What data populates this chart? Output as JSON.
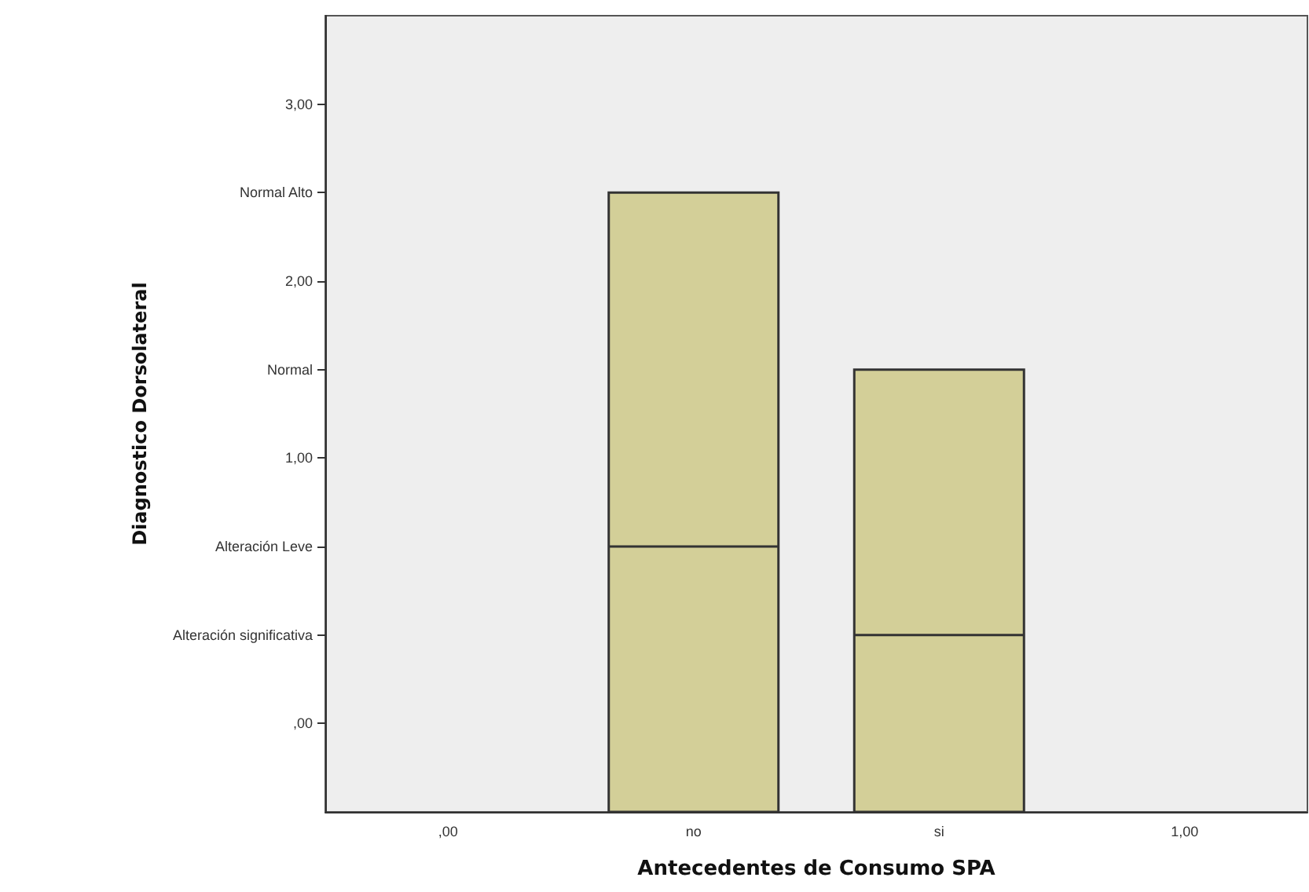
{
  "chart_data": {
    "type": "box",
    "xlabel": "Antecedentes de Consumo SPA",
    "ylabel": "Diagnostico Dorsolateral",
    "categories": [
      ",00",
      "no",
      "si",
      "1,00"
    ],
    "series": [
      {
        "color": "#d3cf98",
        "boxes": [
          null,
          {
            "low": -1,
            "q1": -1,
            "median": 0.5,
            "q3": 2.5,
            "high": 2.5
          },
          {
            "low": -1,
            "q1": -1,
            "median": 0,
            "q3": 1.5,
            "high": 1.5
          },
          null
        ]
      }
    ],
    "ylim": [
      -1,
      3.5
    ],
    "yticks": [
      {
        "value": -0.5,
        "label": ",00"
      },
      {
        "value": 0,
        "label": "Alteración significativa"
      },
      {
        "value": 0.5,
        "label": "Alteración Leve"
      },
      {
        "value": 1,
        "label": "1,00"
      },
      {
        "value": 1.5,
        "label": "Normal"
      },
      {
        "value": 2,
        "label": "2,00"
      },
      {
        "value": 2.5,
        "label": "Normal Alto"
      },
      {
        "value": 3,
        "label": "3,00"
      }
    ],
    "grid": false
  }
}
